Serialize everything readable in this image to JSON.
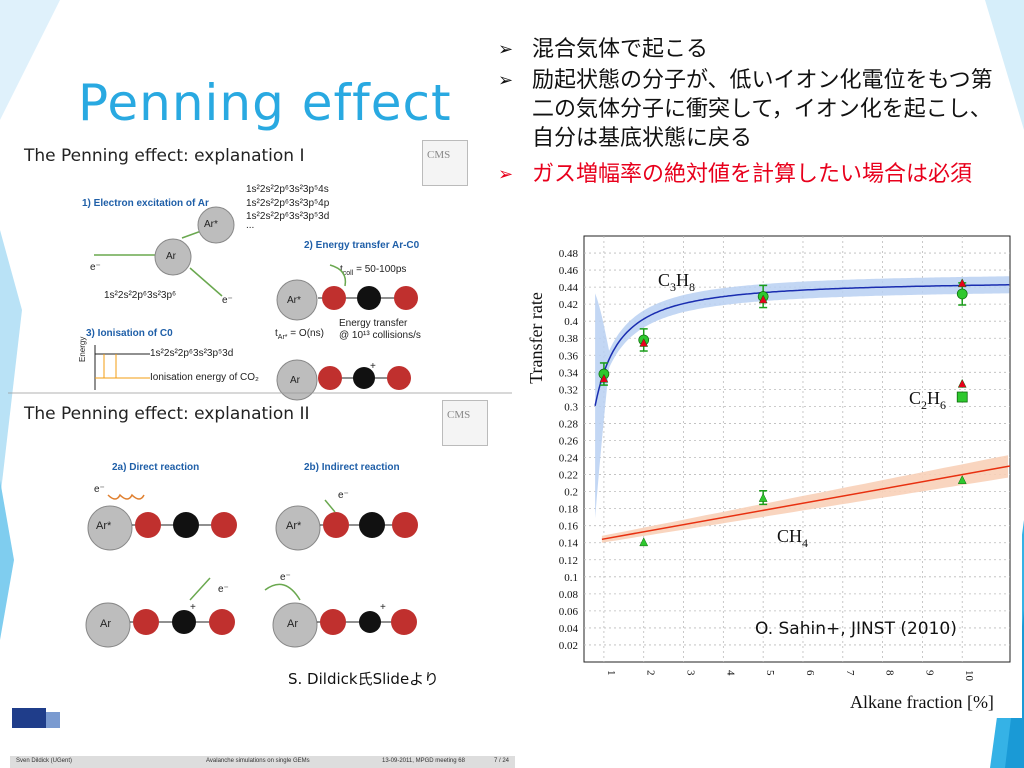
{
  "slide": {
    "title": "Penning effect",
    "bullets": [
      {
        "text": "混合気体で起こる",
        "color": "#111111"
      },
      {
        "text": "励起状態の分子が、低いイオン化電位をもつ第二の気体分子に衝突して，イオン化を起こし、自分は基底状態に戻る",
        "color": "#111111"
      },
      {
        "text": "ガス増幅率の絶対値を計算したい場合は必須",
        "color": "#e8001c"
      }
    ],
    "credit": "S. Dildick氏Slideより",
    "citation": "O. Sahin+, JINST (2010)"
  },
  "embedded": {
    "title1": "The Penning effect: explanation I",
    "title2": "The Penning effect: explanation II",
    "step1": "1) Electron excitation of Ar",
    "step2": "2) Energy transfer Ar-C0",
    "step3": "3) Ionisation of C0",
    "step2a": "2a) Direct reaction",
    "step2b": "2b) Indirect reaction",
    "config1": "1s²2s²2p⁶3s²3p⁵4s",
    "config2": "1s²2s²2p⁶3s²3p⁵4p",
    "config3": "1s²2s²2p⁶3s²3p⁵3d",
    "config_dots": "...",
    "config_ground": "1s²2s²2p⁶3s²3p⁶",
    "config_ion": "1s²2s²2p⁶3s²3p⁵3d",
    "t_coll": "t",
    "t_coll_sub": "coll",
    "t_coll_val": "= 50-100ps",
    "t_ar": "t",
    "t_ar_sub": "Ar*",
    "t_ar_val": "= O(ns)",
    "energy_transfer": "Energy transfer",
    "collisions": "@ 10¹³ collisions/s",
    "energy": "Energy",
    "ionisation_energy": "Ionisation energy of CO₂",
    "ar": "Ar",
    "ar_star": "Ar*",
    "e_minus": "e⁻",
    "plus": "+",
    "cms": "CMS",
    "footer_author": "Sven Dildick (UGent)",
    "footer_talk": "Avalanche simulations on single GEMs",
    "footer_date": "13-09-2011, MPGD meeting 68",
    "footer_page": "7 / 24"
  },
  "chart_data": {
    "type": "scatter",
    "title": "",
    "xlabel": "Alkane fraction [%]",
    "ylabel": "Transfer rate",
    "xlim": [
      0.5,
      11.2
    ],
    "ylim": [
      0.0,
      0.5
    ],
    "x_ticks": [
      1,
      2,
      3,
      4,
      5,
      6,
      7,
      8,
      9,
      10
    ],
    "y_ticks": [
      0.02,
      0.04,
      0.06,
      0.08,
      0.1,
      0.12,
      0.14,
      0.16,
      0.18,
      0.2,
      0.22,
      0.24,
      0.26,
      0.28,
      0.3,
      0.32,
      0.34,
      0.36,
      0.38,
      0.4,
      0.42,
      0.44,
      0.46,
      0.48
    ],
    "y_tick_labels": [
      "0.02",
      "0.04",
      "0.06",
      "0.08",
      "0.1",
      "0.12",
      "0.14",
      "0.16",
      "0.18",
      "0.2",
      "0.22",
      "0.24",
      "0.26",
      "0.28",
      "0.3",
      "0.32",
      "0.34",
      "0.36",
      "0.38",
      "0.4",
      "0.42",
      "0.44",
      "0.46",
      "0.48"
    ],
    "grid": true,
    "series": [
      {
        "name": "C3H8",
        "label_main": "C",
        "label_parts": [
          "3",
          "H",
          "8"
        ],
        "color": "#1a2db0",
        "band": "#b8d0f2",
        "points": [
          [
            1,
            0.338
          ],
          [
            2,
            0.378
          ],
          [
            5,
            0.429
          ],
          [
            10,
            0.432
          ]
        ],
        "red_points": [
          [
            1,
            0.333
          ],
          [
            2,
            0.375
          ],
          [
            5,
            0.426
          ],
          [
            10,
            0.445
          ]
        ]
      },
      {
        "name": "C2H6",
        "label_parts": [
          "2",
          "H",
          "6"
        ],
        "color": "#1a9e1a",
        "points": [
          [
            10,
            0.311
          ]
        ],
        "red_points": [
          [
            10,
            0.327
          ]
        ]
      },
      {
        "name": "CH4",
        "label_parts": [
          "H",
          "4"
        ],
        "color": "#e83010",
        "band": "#f8d0b8",
        "points": [
          [
            2,
            0.141
          ],
          [
            5,
            0.193
          ],
          [
            10,
            0.214
          ]
        ],
        "fit": [
          [
            0.95,
            0.144
          ],
          [
            11.2,
            0.23
          ]
        ]
      }
    ]
  },
  "colors": {
    "title": "#29a9e1",
    "accent_red": "#e8001c",
    "deco_blue": "#29a9e1"
  }
}
